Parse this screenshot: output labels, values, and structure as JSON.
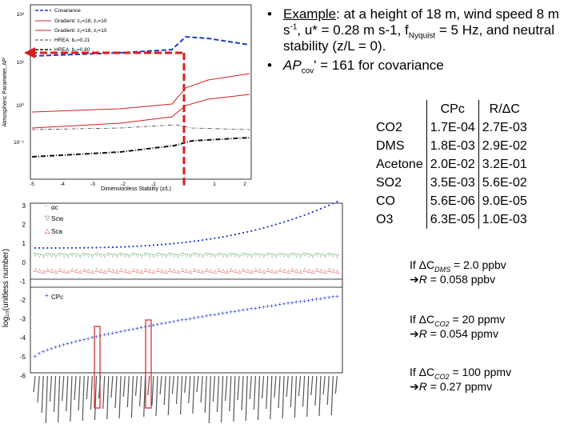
{
  "fig1": {
    "ylabel": "Atmospheric Parameter, AP'",
    "xlabel": "Dimensionless Stability (z/L)",
    "yticks": [
      "10²",
      "10¹",
      "10⁰",
      "10⁻¹"
    ],
    "xticks": [
      "-5",
      "-4",
      "-3",
      "-2",
      "-1",
      "0",
      "1",
      "2"
    ],
    "legend": [
      "Covariance",
      "Gradient: z₂=18, z₁=10",
      "Gradient: z₂=18, z₁=10",
      "HREA: b₀=0.21",
      "HREA: b₀=0.80"
    ]
  },
  "fig2": {
    "ylabel": "log₁₀(unitless number)",
    "yticks": [
      "3",
      "2",
      "1",
      "0",
      "-1",
      "-2",
      "-3",
      "-4",
      "-5",
      "-6"
    ],
    "legend_top": [
      "αc",
      "Scw",
      "Sca"
    ],
    "legend_bottom": "CPc"
  },
  "bullets": {
    "b1_prefix": "Example",
    "b1_text": ": at a height of 18 m, wind speed 8 m s",
    "b1_sup1": "-1",
    "b1_mid": ", u* = 0.28 m s-1, f",
    "b1_sub": "Nyquist",
    "b1_end": " = 5 Hz, and neutral stability (z/L = 0).",
    "b2_ap": "AP",
    "b2_sub": "cov",
    "b2_text": "' = 161 for covariance"
  },
  "table": {
    "headers": [
      "CPc",
      "R/ΔC"
    ],
    "rows": [
      {
        "gas": "CO2",
        "cpc": "1.7E-04",
        "r": "2.7E-03"
      },
      {
        "gas": "DMS",
        "cpc": "1.8E-03",
        "r": "2.9E-02"
      },
      {
        "gas": "Acetone",
        "cpc": "2.0E-02",
        "r": "3.2E-01"
      },
      {
        "gas": "SO2",
        "cpc": "3.5E-03",
        "r": "5.6E-02"
      },
      {
        "gas": "CO",
        "cpc": "5.6E-06",
        "r": "9.0E-05"
      },
      {
        "gas": "O3",
        "cpc": "6.3E-05",
        "r": "1.0E-03"
      }
    ]
  },
  "notes": [
    {
      "line1_pre": "If ΔC",
      "sub": "DMS",
      "line1_post": " = 2.0 ppbv",
      "line2_pre": "R",
      "line2_post": " = 0.058 ppbv"
    },
    {
      "line1_pre": "If ΔC",
      "sub": "CO2",
      "line1_post": " = 20 ppmv",
      "line2_pre": "R",
      "line2_post": " = 0.054 ppmv"
    },
    {
      "line1_pre": "If ΔC",
      "sub": "CO2",
      "line1_post": " = 100 ppmv",
      "line2_pre": "R",
      "line2_post": " = 0.27 ppmv"
    }
  ],
  "colors": {
    "red": "#d62020",
    "blue": "#1e3cc8",
    "green": "#208a20",
    "dark": "#222222"
  }
}
